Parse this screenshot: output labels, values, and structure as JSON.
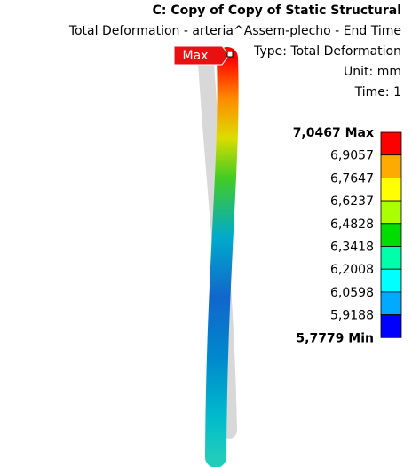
{
  "header": {
    "title": "C: Copy of Copy of Static Structural",
    "subtitle": "Total Deformation - arteria^Assem-plecho - End Time",
    "type": "Type: Total Deformation",
    "unit": "Unit: mm",
    "time": "Time: 1"
  },
  "legend": {
    "labels": [
      "7,0467 Max",
      "6,9057",
      "6,7647",
      "6,6237",
      "6,4828",
      "6,3418",
      "6,2008",
      "6,0598",
      "5,9188",
      "5,7779 Min"
    ],
    "colors": [
      "#ff0000",
      "#ffaa00",
      "#ffff00",
      "#aaff00",
      "#00dd00",
      "#00ffaa",
      "#00ffff",
      "#00aaff",
      "#0000ff"
    ]
  },
  "probe": {
    "label": "Max"
  }
}
